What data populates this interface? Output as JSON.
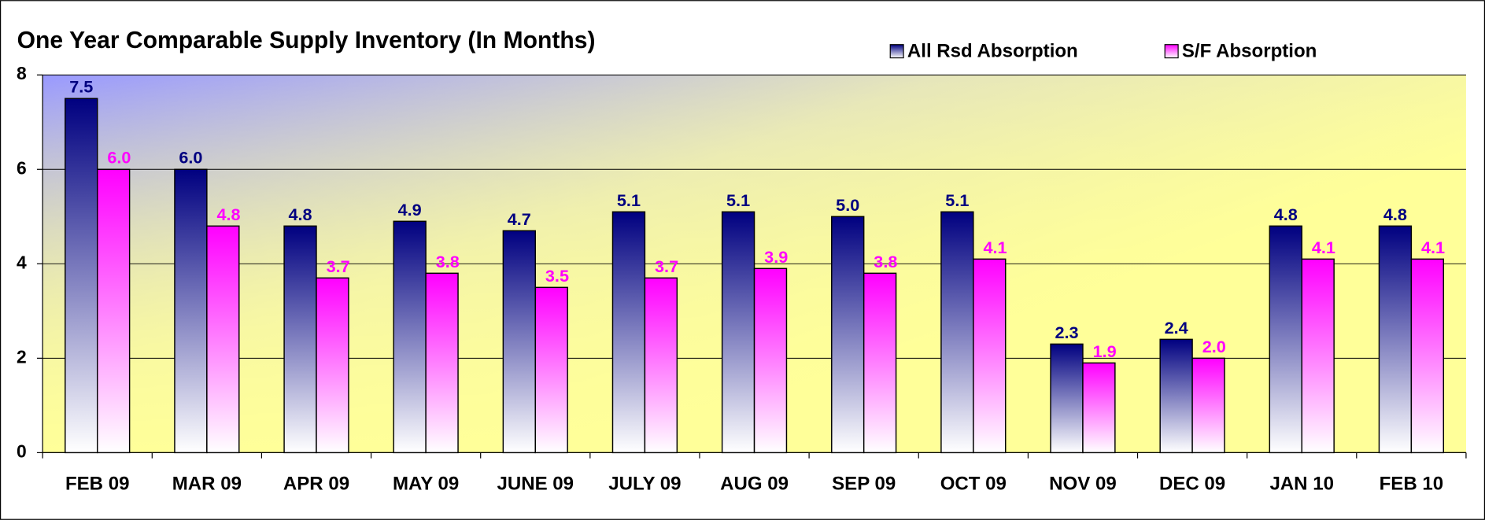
{
  "chart_data": {
    "type": "bar",
    "title": "One Year Comparable Supply Inventory (In Months)",
    "categories": [
      "FEB 09",
      "MAR 09",
      "APR 09",
      "MAY 09",
      "JUNE 09",
      "JULY 09",
      "AUG 09",
      "SEP 09",
      "OCT 09",
      "NOV 09",
      "DEC 09",
      "JAN 10",
      "FEB 10"
    ],
    "series": [
      {
        "name": "All Rsd Absorption",
        "color": "#000080",
        "values": [
          7.5,
          6.0,
          4.8,
          4.9,
          4.7,
          5.1,
          5.1,
          5.0,
          5.1,
          2.3,
          2.4,
          4.8,
          4.8
        ],
        "value_labels": [
          "7.5",
          "6.0",
          "4.8",
          "4.9",
          "4.7",
          "5.1",
          "5.1",
          "5.0",
          "5.1",
          "2.3",
          "2.4",
          "4.8",
          "4.8"
        ]
      },
      {
        "name": "S/F Absorption",
        "color": "#ff00ff",
        "values": [
          6.0,
          4.8,
          3.7,
          3.8,
          3.5,
          3.7,
          3.9,
          3.8,
          4.1,
          1.9,
          2.0,
          4.1,
          4.1
        ],
        "value_labels": [
          "6.0",
          "4.8",
          "3.7",
          "3.8",
          "3.5",
          "3.7",
          "3.9",
          "3.8",
          "4.1",
          "1.9",
          "2.0",
          "4.1",
          "4.1"
        ]
      }
    ],
    "ylim": [
      0,
      8
    ],
    "yticks": [
      0,
      2,
      4,
      6,
      8
    ],
    "grid": true,
    "legend": "top"
  }
}
